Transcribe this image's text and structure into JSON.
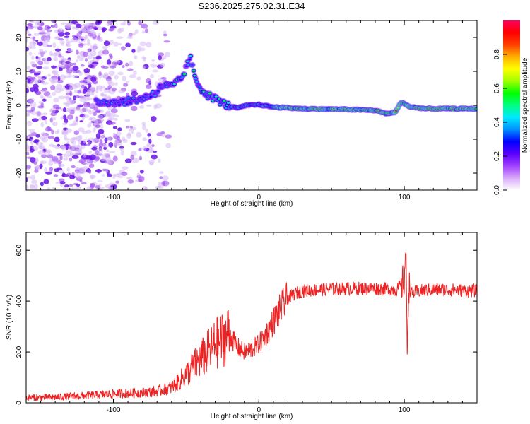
{
  "figure_title": "S236.2025.275.02.31.E34",
  "colors": {
    "snr_line": "#ee2222",
    "spectrum_dots": "#8a2be2",
    "colormap": [
      "#ffffff",
      "#d8a8f8",
      "#a040ff",
      "#5a00ff",
      "#0000ff",
      "#0090ff",
      "#00e8ff",
      "#00ff80",
      "#00ff00",
      "#a0ff00",
      "#ffff00",
      "#ffb000",
      "#ff4000",
      "#ff0000",
      "#ff0060"
    ]
  },
  "chart_data": [
    {
      "type": "heatmap",
      "title": "",
      "xlabel": "Height of straight line (km)",
      "ylabel": "Frequency (Hz)",
      "xlim": [
        -160,
        150
      ],
      "ylim": [
        -25,
        25
      ],
      "xticks": [
        -100,
        0,
        100
      ],
      "yticks": [
        -20,
        -10,
        0,
        10,
        20
      ],
      "colorbar": {
        "label": "Normalized spectral amplitude",
        "range": [
          0,
          1
        ],
        "ticks": [
          0.0,
          0.2,
          0.4,
          0.6,
          0.8
        ]
      },
      "ridge": [
        {
          "x": -112,
          "f": 1.0
        },
        {
          "x": -100,
          "f": 1.0
        },
        {
          "x": -90,
          "f": 1.2
        },
        {
          "x": -80,
          "f": 2.0
        },
        {
          "x": -72,
          "f": 3.5
        },
        {
          "x": -66,
          "f": 6.0
        },
        {
          "x": -60,
          "f": 5.5
        },
        {
          "x": -53,
          "f": 8.0
        },
        {
          "x": -50,
          "f": 11.0
        },
        {
          "x": -47,
          "f": 14.0
        },
        {
          "x": -44,
          "f": 8.0
        },
        {
          "x": -40,
          "f": 5.0
        },
        {
          "x": -35,
          "f": 3.0
        },
        {
          "x": -28,
          "f": 1.5
        },
        {
          "x": -22,
          "f": 0.0
        },
        {
          "x": -15,
          "f": -0.8
        },
        {
          "x": -8,
          "f": 0.0
        },
        {
          "x": 0,
          "f": 0.2
        },
        {
          "x": 10,
          "f": -0.5
        },
        {
          "x": 30,
          "f": -1.0
        },
        {
          "x": 60,
          "f": -1.2
        },
        {
          "x": 80,
          "f": -1.5
        },
        {
          "x": 88,
          "f": -2.5
        },
        {
          "x": 94,
          "f": -2.0
        },
        {
          "x": 98,
          "f": 1.0
        },
        {
          "x": 104,
          "f": -0.5
        },
        {
          "x": 115,
          "f": -1.0
        },
        {
          "x": 150,
          "f": -1.0
        }
      ]
    },
    {
      "type": "line",
      "title": "",
      "xlabel": "Height of straight line (km)",
      "ylabel": "SNR (10 * v/v)",
      "xlim": [
        -160,
        150
      ],
      "ylim": [
        0,
        670
      ],
      "xticks": [
        -100,
        0,
        100
      ],
      "yticks": [
        0,
        200,
        400,
        600
      ],
      "series": [
        {
          "name": "SNR",
          "x": [
            -160,
            -140,
            -120,
            -100,
            -80,
            -70,
            -60,
            -50,
            -45,
            -40,
            -35,
            -30,
            -25,
            -20,
            -15,
            -10,
            -5,
            0,
            5,
            10,
            15,
            20,
            25,
            30,
            40,
            60,
            80,
            95,
            100,
            101,
            102,
            103,
            105,
            110,
            120,
            130,
            150
          ],
          "values": [
            20,
            22,
            28,
            35,
            40,
            45,
            60,
            110,
            145,
            170,
            200,
            230,
            250,
            270,
            220,
            200,
            210,
            230,
            270,
            320,
            370,
            410,
            430,
            440,
            445,
            450,
            450,
            445,
            480,
            620,
            200,
            460,
            430,
            440,
            445,
            445,
            440
          ]
        }
      ]
    }
  ]
}
